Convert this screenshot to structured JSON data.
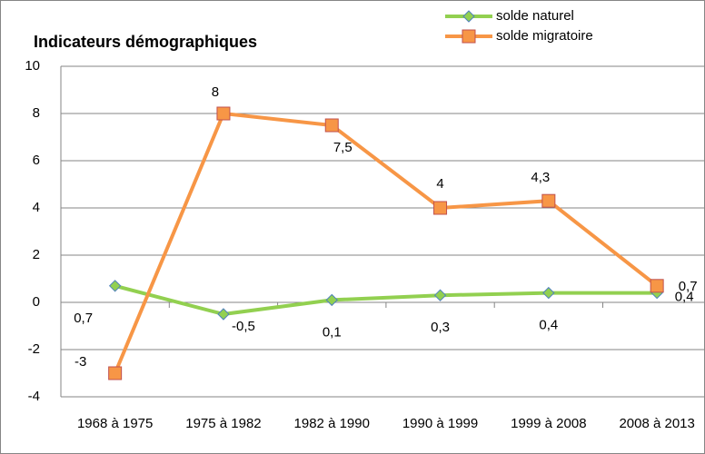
{
  "chart_data": {
    "type": "line",
    "title": "Indicateurs démographiques",
    "categories": [
      "1968 à 1975",
      "1975 à 1982",
      "1982 à 1990",
      "1990 à 1999",
      "1999 à 2008",
      "2008 à 2013"
    ],
    "series": [
      {
        "name": "solde naturel",
        "color": "#92d050",
        "marker": "diamond",
        "values": [
          0.7,
          -0.5,
          0.1,
          0.3,
          0.4,
          0.4
        ],
        "value_labels": [
          "0,7",
          "-0,5",
          "0,1",
          "0,3",
          "0,4",
          "0,4"
        ]
      },
      {
        "name": "solde migratoire",
        "color": "#f79646",
        "marker": "square",
        "values": [
          -3,
          8,
          7.5,
          4,
          4.3,
          0.7
        ],
        "value_labels": [
          "-3",
          "8",
          "7,5",
          "4",
          "4,3",
          "0,7"
        ]
      }
    ],
    "ylim": [
      -4,
      10
    ],
    "yticks": [
      -4,
      -2,
      0,
      2,
      4,
      6,
      8,
      10
    ],
    "grid": true,
    "legend": "top-right"
  }
}
